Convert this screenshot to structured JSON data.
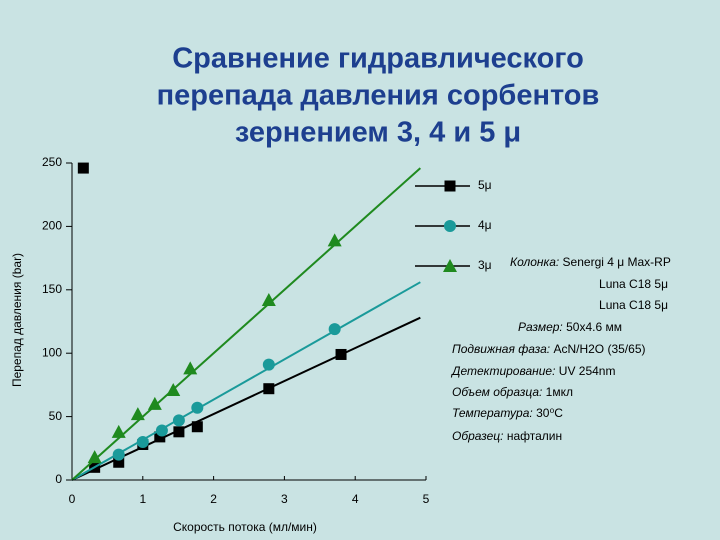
{
  "chart_data": {
    "type": "scatter",
    "title": [
      "Сравнение гидравлического",
      "перепада давления сорбентов",
      "зернением 3, 4 и 5 μ"
    ],
    "x_label": "Скорость потока (мл/мин)",
    "y_label": "Перепад давления (bar)",
    "xlim": [
      0,
      5
    ],
    "ylim": [
      0,
      250
    ],
    "xticks": [
      0,
      1,
      2,
      3,
      4,
      5
    ],
    "yticks": [
      0,
      50,
      100,
      150,
      200,
      250
    ],
    "series": [
      {
        "name": "5μ",
        "color": "#000000",
        "marker": "square",
        "x": [
          0.16,
          0.32,
          0.66,
          1.0,
          1.24,
          1.51,
          1.77,
          2.78,
          3.8
        ],
        "values": [
          246,
          10,
          14,
          28,
          34,
          38,
          42,
          72,
          99
        ],
        "fit": {
          "x": [
            0,
            4.92
          ],
          "y": [
            0,
            128
          ]
        }
      },
      {
        "name": "4μ",
        "color": "#1a9a9a",
        "marker": "circle",
        "x": [
          0.66,
          1.0,
          1.27,
          1.51,
          1.77,
          2.78,
          3.71
        ],
        "values": [
          20,
          30,
          39,
          47,
          57,
          91,
          119
        ],
        "fit": {
          "x": [
            0,
            4.92
          ],
          "y": [
            0,
            156
          ]
        }
      },
      {
        "name": "3μ",
        "color": "#1f8a1f",
        "marker": "triangle",
        "x": [
          0.32,
          0.66,
          0.93,
          1.17,
          1.43,
          1.67,
          2.78,
          3.71
        ],
        "values": [
          18,
          38,
          52,
          60,
          71,
          88,
          142,
          189
        ],
        "fit": {
          "x": [
            0,
            4.92
          ],
          "y": [
            0,
            246
          ]
        }
      }
    ],
    "notes": [
      {
        "label": "Колонка:",
        "text": "Senergi 4 μ Max-RP"
      },
      {
        "text": "Luna C18 5μ"
      },
      {
        "text": "Luna C18 5μ"
      },
      {
        "label": "Размер:",
        "text": "50x4.6 мм"
      },
      {
        "label": "Подвижная фаза:",
        "text": "AcN/H2O (35/65)"
      },
      {
        "label": "Детектирование:",
        "text": "UV 254nm"
      },
      {
        "label": "Объем образца:",
        "text": "1мкл"
      },
      {
        "label": "Температура:",
        "text": "30⁰С"
      },
      {
        "label": "Образец:",
        "text": "нафталин"
      }
    ]
  }
}
